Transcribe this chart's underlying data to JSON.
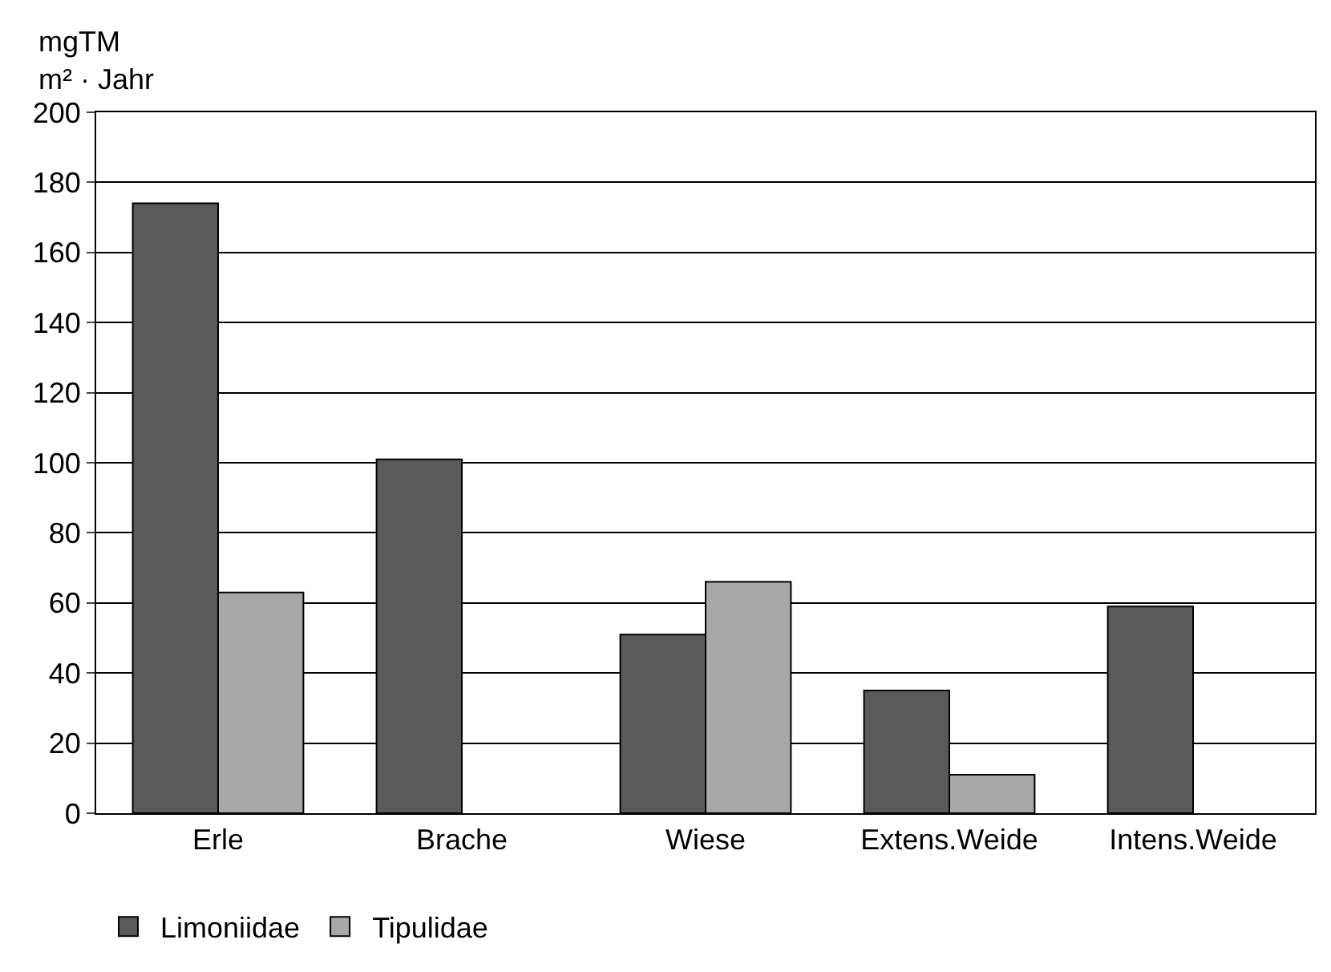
{
  "chart_data": {
    "type": "bar",
    "ylabel": "mgTM\nm² · Jahr",
    "categories": [
      "Erle",
      "Brache",
      "Wiese",
      "Extens.Weide",
      "Intens.Weide"
    ],
    "series": [
      {
        "name": "Limoniidae",
        "color": "#5a5a5a",
        "values": [
          174,
          101,
          51,
          35,
          59
        ]
      },
      {
        "name": "Tipulidae",
        "color": "#a8a8a8",
        "values": [
          63,
          null,
          66,
          11,
          null
        ]
      }
    ],
    "ylim": [
      0,
      200
    ],
    "yticks": [
      0,
      20,
      40,
      60,
      80,
      100,
      120,
      140,
      160,
      180,
      200
    ],
    "grid": "y",
    "legend": "bottom left"
  }
}
